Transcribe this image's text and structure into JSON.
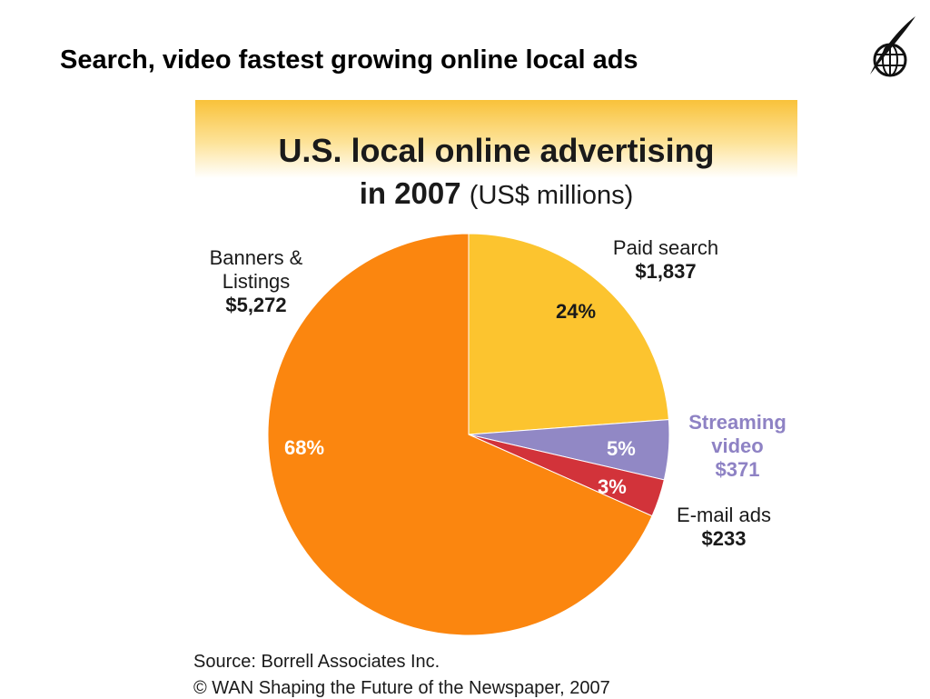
{
  "slide": {
    "title": "Search, video fastest growing online local ads",
    "logo_icon": "globe-quill-icon"
  },
  "chart_data": {
    "type": "pie",
    "title_line1": "U.S. local online advertising",
    "title_line2_bold": "in 2007",
    "title_line2_unit": "(US$ millions)",
    "slices": [
      {
        "label": "Paid search",
        "value_label": "$1,837",
        "value": 1837,
        "percent_label": "24%",
        "color": "#fcc42f"
      },
      {
        "label": "Streaming video",
        "value_label": "$371",
        "value": 371,
        "percent_label": "5%",
        "color": "#9188c5"
      },
      {
        "label": "E-mail ads",
        "value_label": "$233",
        "value": 233,
        "percent_label": "3%",
        "color": "#d2333a"
      },
      {
        "label": "Banners & Listings",
        "value_label": "$5,272",
        "value": 5272,
        "percent_label": "68%",
        "color": "#fb860f"
      }
    ]
  },
  "labels": {
    "paid_search_line1": "Paid search",
    "video_line1": "Streaming",
    "video_line2": "video",
    "email_line1": "E-mail ads",
    "banners_line1": "Banners &",
    "banners_line2": "Listings"
  },
  "source": {
    "line1": "Source: Borrell Associates Inc.",
    "line2": "© WAN Shaping the Future of the Newspaper, 2007"
  }
}
